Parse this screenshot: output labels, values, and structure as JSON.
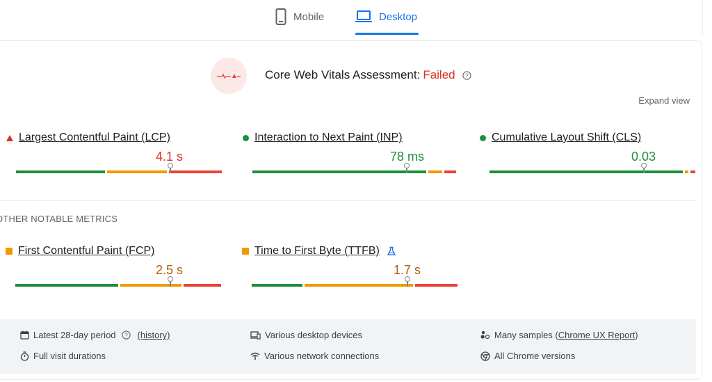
{
  "tabs": {
    "mobile": "Mobile",
    "desktop": "Desktop",
    "active": "Desktop"
  },
  "assessment": {
    "title": "Core Web Vitals Assessment: ",
    "status": "Failed",
    "status_color": "#d93025",
    "expand_label": "Expand view"
  },
  "core_metrics": [
    {
      "name": "Largest Contentful Paint (LCP)",
      "value": "4.1 s",
      "rating": "poor",
      "indicator": "triangle-icon",
      "color": "#d93025"
    },
    {
      "name": "Interaction to Next Paint (INP)",
      "value": "78 ms",
      "rating": "good",
      "indicator": "circle-icon",
      "color": "#1e8e3e"
    },
    {
      "name": "Cumulative Layout Shift (CLS)",
      "value": "0.03",
      "rating": "good",
      "indicator": "circle-icon",
      "color": "#1e8e3e"
    }
  ],
  "other_title": "OTHER NOTABLE METRICS",
  "other_metrics": [
    {
      "name": "First Contentful Paint (FCP)",
      "value": "2.5 s",
      "rating": "needs-improvement",
      "indicator": "square-icon",
      "color": "#b06000"
    },
    {
      "name": "Time to First Byte (TTFB)",
      "value": "1.7 s",
      "rating": "needs-improvement",
      "indicator": "square-icon",
      "color": "#b06000",
      "experimental": "lab-flask-icon"
    }
  ],
  "footer": {
    "period": "Latest 28-day period",
    "history_link": "(history)",
    "durations": "Full visit durations",
    "devices": "Various desktop devices",
    "network": "Various network connections",
    "samples_prefix": "Many samples (",
    "samples_link": "Chrome UX Report",
    "samples_suffix": ")",
    "versions": "All Chrome versions"
  },
  "colors": {
    "good": "#1e8e3e",
    "needs_improvement": "#f29900",
    "poor": "#ea4335",
    "accent": "#1a73e8"
  }
}
